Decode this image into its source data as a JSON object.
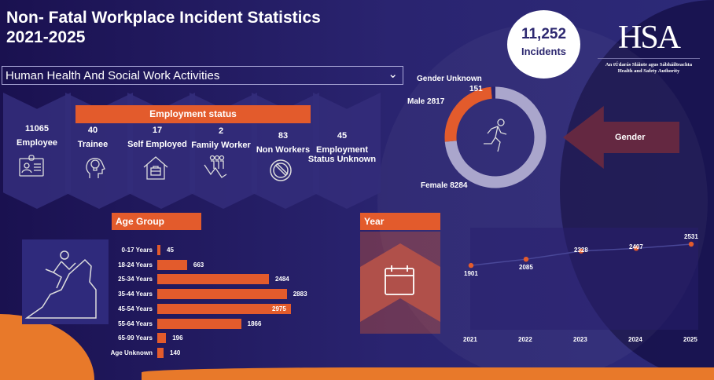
{
  "title": [
    "Non- Fatal Workplace Incident Statistics",
    "2021-2025"
  ],
  "filter": {
    "selected": "Human Health And Social Work Activities"
  },
  "employment": {
    "header": "Employment status",
    "items": [
      {
        "value": "11065",
        "label": "Employee",
        "icon": "id-card-icon"
      },
      {
        "value": "40",
        "label": "Trainee",
        "icon": "head-lightbulb-icon"
      },
      {
        "value": "17",
        "label": "Self Employed",
        "icon": "house-briefcase-icon"
      },
      {
        "value": "2",
        "label": "Family Worker",
        "icon": "family-group-icon"
      },
      {
        "value": "83",
        "label": "Non Workers",
        "icon": "prohibited-icon"
      },
      {
        "value": "45",
        "label": "Employment Status Unknown",
        "icon": ""
      }
    ]
  },
  "total": {
    "value": "11,252",
    "label": "Incidents"
  },
  "logo": {
    "text": "HSA",
    "sub1": "An tÚdarás Sláinte agus Sábháilteachta",
    "sub2": "Health and Safety Authority"
  },
  "gender_label": "Gender",
  "age_header": "Age Group",
  "year_header": "Year",
  "colors": {
    "orange": "#e35b2c",
    "donut_gray": "#aaa6cc",
    "bg": "#2a2470"
  },
  "chart_data": [
    {
      "type": "pie",
      "title": "Gender",
      "donut": true,
      "slices": [
        {
          "label": "Female",
          "value": 8284,
          "display": "Female 8284",
          "color": "#aaa6cc"
        },
        {
          "label": "Male",
          "value": 2817,
          "display": "Male 2817",
          "color": "#e35b2c"
        },
        {
          "label": "Gender Unknown",
          "value": 151,
          "display": "Gender Unknown",
          "display2": "151",
          "color": "#2a2470"
        }
      ]
    },
    {
      "type": "bar",
      "orientation": "horizontal",
      "title": "Age Group",
      "categories": [
        "0-17 Years",
        "18-24 Years",
        "25-34 Years",
        "35-44 Years",
        "45-54 Years",
        "55-64 Years",
        "65-99 Years",
        "Age Unknown"
      ],
      "values": [
        45,
        663,
        2484,
        2883,
        2975,
        1866,
        196,
        140
      ],
      "xlim": [
        0,
        2975
      ]
    },
    {
      "type": "line",
      "title": "Year",
      "x": [
        "2021",
        "2022",
        "2023",
        "2024",
        "2025"
      ],
      "values": [
        1901,
        2085,
        2328,
        2407,
        2531
      ],
      "ylim": [
        0,
        2600
      ]
    }
  ]
}
